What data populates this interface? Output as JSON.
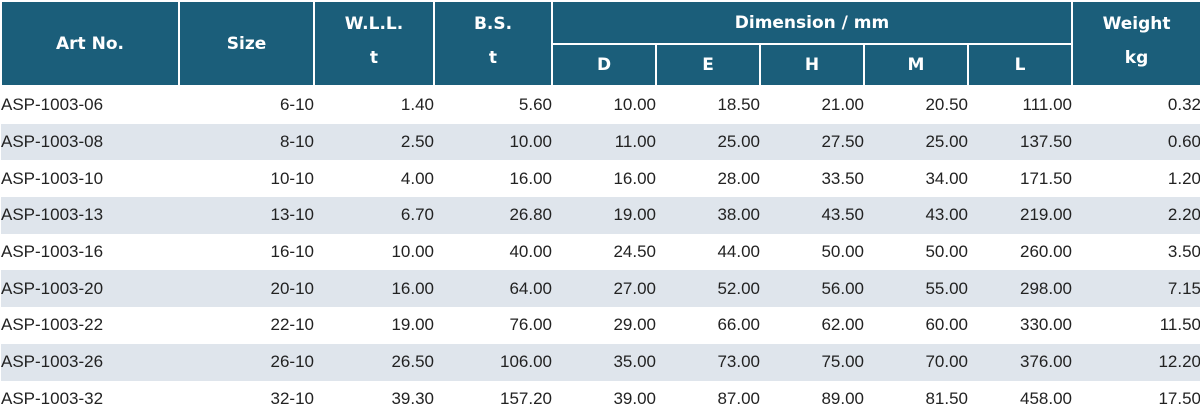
{
  "header": {
    "art_no": "Art No.",
    "size": "Size",
    "wll": "W.L.L.",
    "wll_unit": "t",
    "bs": "B.S.",
    "bs_unit": "t",
    "dimension": "Dimension / mm",
    "weight": "Weight",
    "weight_unit": "kg",
    "dims": [
      "D",
      "E",
      "H",
      "M",
      "L"
    ]
  },
  "rows": [
    {
      "art": "ASP-1003-06",
      "size": "6-10",
      "wll": "1.40",
      "bs": "5.60",
      "d": "10.00",
      "e": "18.50",
      "h": "21.00",
      "m": "20.50",
      "l": "111.00",
      "w": "0.32"
    },
    {
      "art": "ASP-1003-08",
      "size": "8-10",
      "wll": "2.50",
      "bs": "10.00",
      "d": "11.00",
      "e": "25.00",
      "h": "27.50",
      "m": "25.00",
      "l": "137.50",
      "w": "0.60"
    },
    {
      "art": "ASP-1003-10",
      "size": "10-10",
      "wll": "4.00",
      "bs": "16.00",
      "d": "16.00",
      "e": "28.00",
      "h": "33.50",
      "m": "34.00",
      "l": "171.50",
      "w": "1.20"
    },
    {
      "art": "ASP-1003-13",
      "size": "13-10",
      "wll": "6.70",
      "bs": "26.80",
      "d": "19.00",
      "e": "38.00",
      "h": "43.50",
      "m": "43.00",
      "l": "219.00",
      "w": "2.20"
    },
    {
      "art": "ASP-1003-16",
      "size": "16-10",
      "wll": "10.00",
      "bs": "40.00",
      "d": "24.50",
      "e": "44.00",
      "h": "50.00",
      "m": "50.00",
      "l": "260.00",
      "w": "3.50"
    },
    {
      "art": "ASP-1003-20",
      "size": "20-10",
      "wll": "16.00",
      "bs": "64.00",
      "d": "27.00",
      "e": "52.00",
      "h": "56.00",
      "m": "55.00",
      "l": "298.00",
      "w": "7.15"
    },
    {
      "art": "ASP-1003-22",
      "size": "22-10",
      "wll": "19.00",
      "bs": "76.00",
      "d": "29.00",
      "e": "66.00",
      "h": "62.00",
      "m": "60.00",
      "l": "330.00",
      "w": "11.50"
    },
    {
      "art": "ASP-1003-26",
      "size": "26-10",
      "wll": "26.50",
      "bs": "106.00",
      "d": "35.00",
      "e": "73.00",
      "h": "75.00",
      "m": "70.00",
      "l": "376.00",
      "w": "12.20"
    },
    {
      "art": "ASP-1003-32",
      "size": "32-10",
      "wll": "39.30",
      "bs": "157.20",
      "d": "39.00",
      "e": "87.00",
      "h": "89.00",
      "m": "81.50",
      "l": "458.00",
      "w": "17.50"
    }
  ]
}
